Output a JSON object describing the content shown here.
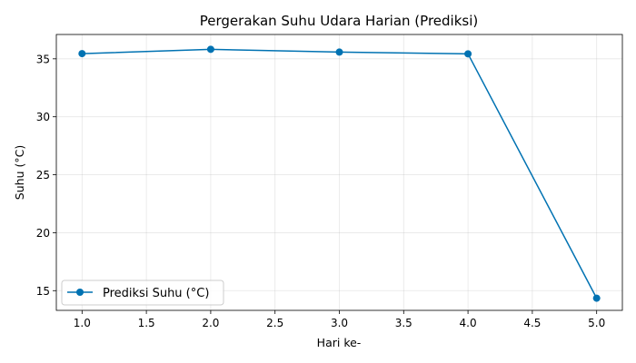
{
  "chart_data": {
    "type": "line",
    "title": "Pergerakan Suhu Udara Harian (Prediksi)",
    "xlabel": "Hari ke-",
    "ylabel": "Suhu (°C)",
    "x": [
      1,
      2,
      3,
      4,
      5
    ],
    "series": [
      {
        "name": "Prediksi Suhu (°C)",
        "values": [
          35.45,
          35.82,
          35.58,
          35.43,
          14.35
        ],
        "color": "#0072b2",
        "marker": "circle"
      }
    ],
    "xlim": [
      0.8,
      5.2
    ],
    "ylim": [
      13.3,
      37.1
    ],
    "xticks": [
      1.0,
      1.5,
      2.0,
      2.5,
      3.0,
      3.5,
      4.0,
      4.5,
      5.0
    ],
    "xtick_labels": [
      "1.0",
      "1.5",
      "2.0",
      "2.5",
      "3.0",
      "3.5",
      "4.0",
      "4.5",
      "5.0"
    ],
    "yticks": [
      15,
      20,
      25,
      30,
      35
    ],
    "ytick_labels": [
      "15",
      "20",
      "25",
      "30",
      "35"
    ],
    "grid": true,
    "legend_position": "lower-left"
  }
}
